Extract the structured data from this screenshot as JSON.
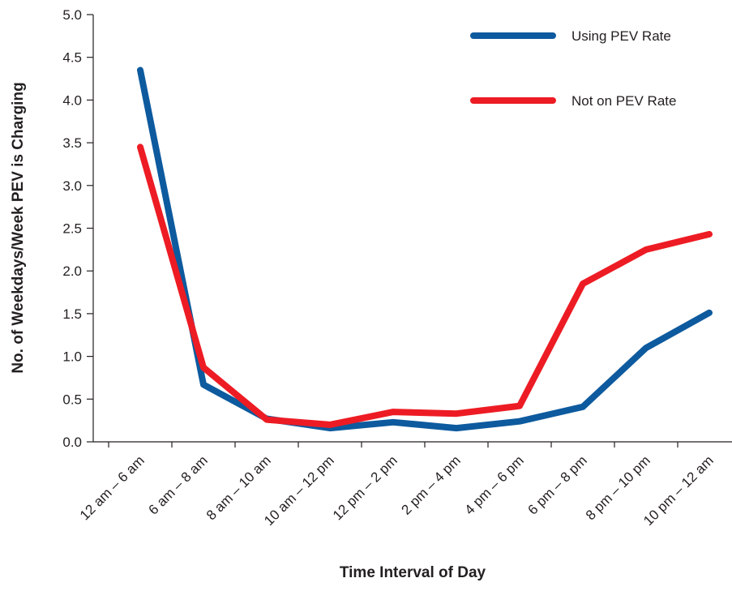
{
  "chart_data": {
    "type": "line",
    "title": "",
    "xlabel": "Time Interval of Day",
    "ylabel": "No. of Weekdays/Week PEV is Charging",
    "ylim": [
      0,
      5
    ],
    "y_ticks": [
      "0.0",
      "0.5",
      "1.0",
      "1.5",
      "2.0",
      "2.5",
      "3.0",
      "3.5",
      "4.0",
      "4.5",
      "5.0"
    ],
    "grid": false,
    "legend_position": "top-right",
    "categories": [
      "12 am – 6 am",
      "6 am – 8 am",
      "8 am – 10 am",
      "10 am – 12 pm",
      "12 pm – 2 pm",
      "2 pm – 4 pm",
      "4 pm – 6 pm",
      "6 pm – 8 pm",
      "8 pm – 10 pm",
      "10 pm – 12 am"
    ],
    "series": [
      {
        "name": "Using PEV Rate",
        "color": "#0d5a9e",
        "values": [
          4.35,
          0.67,
          0.27,
          0.16,
          0.23,
          0.16,
          0.24,
          0.41,
          1.1,
          1.51
        ]
      },
      {
        "name": "Not on PEV Rate",
        "color": "#ed1c24",
        "values": [
          3.45,
          0.87,
          0.26,
          0.2,
          0.35,
          0.33,
          0.42,
          1.85,
          2.25,
          2.43
        ]
      }
    ]
  }
}
